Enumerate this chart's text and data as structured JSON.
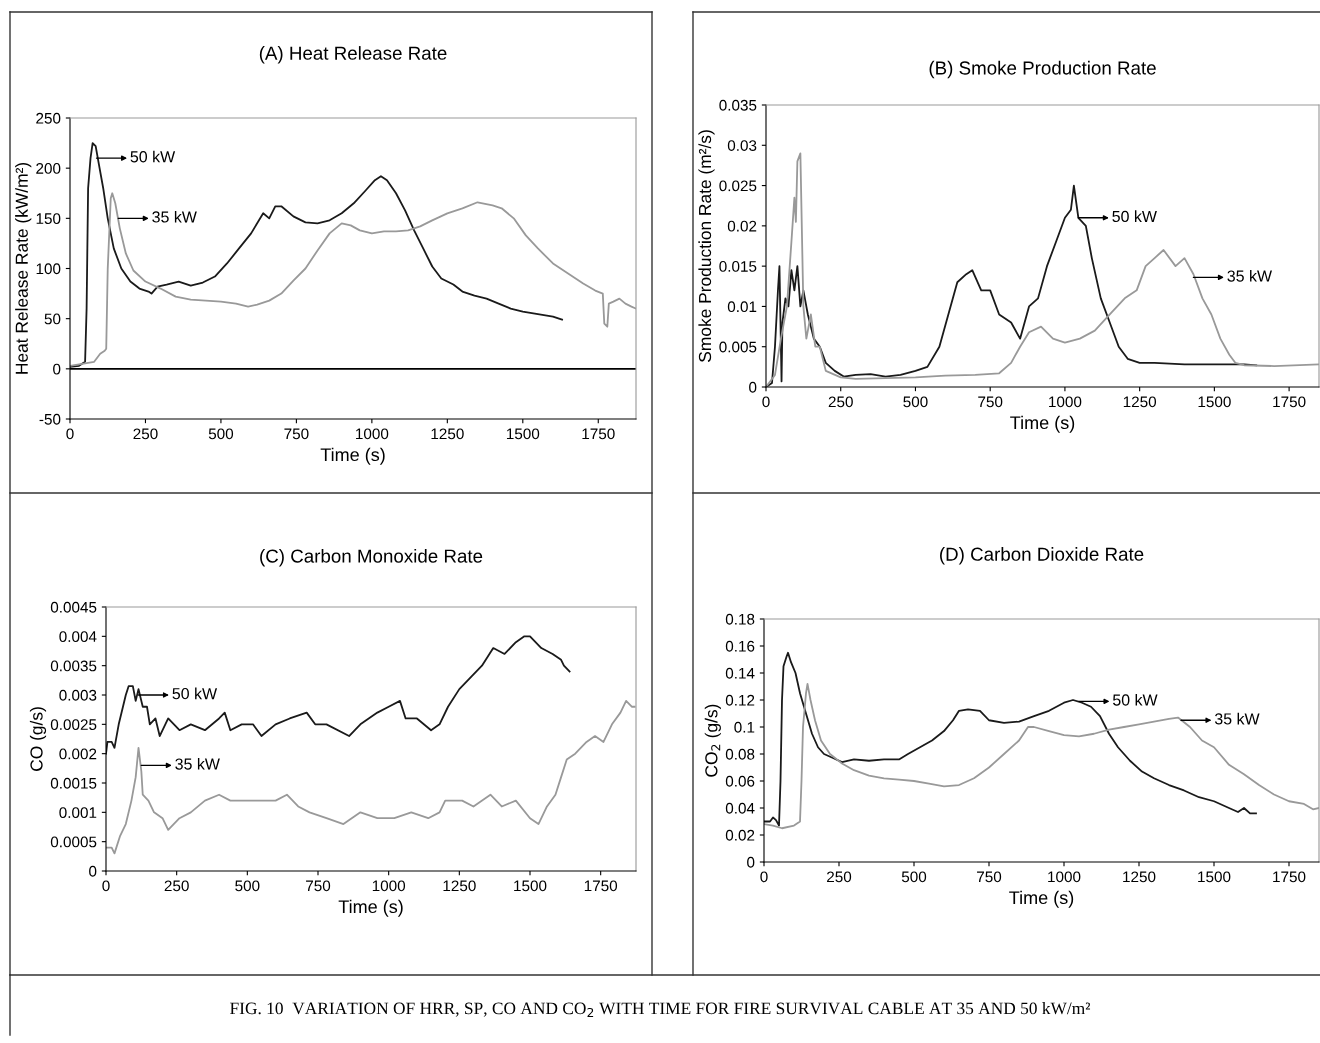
{
  "chart_data": [
    {
      "type": "line",
      "title": "(A) Heat Release Rate",
      "xlabel": "Time (s)",
      "ylabel": "Heat Release Rate (kW/m²)",
      "xlim": [
        0,
        1875
      ],
      "xticks": [
        0,
        250,
        500,
        750,
        1000,
        1250,
        1500,
        1750
      ],
      "ylim": [
        -50,
        250
      ],
      "yticks": [
        -50,
        0,
        50,
        100,
        150,
        200,
        250
      ],
      "series": [
        {
          "color": "#1a1a1a",
          "x": [
            0,
            30,
            45,
            50,
            55,
            60,
            68,
            75,
            85,
            95,
            110,
            125,
            145,
            170,
            200,
            230,
            260,
            270,
            290,
            320,
            360,
            400,
            440,
            480,
            520,
            560,
            600,
            640,
            660,
            680,
            700,
            740,
            780,
            820,
            860,
            900,
            940,
            980,
            1010,
            1030,
            1050,
            1080,
            1110,
            1140,
            1170,
            1200,
            1230,
            1270,
            1300,
            1340,
            1380,
            1420,
            1460,
            1500,
            1540,
            1580,
            1600,
            1620,
            1630
          ],
          "values": [
            2,
            3,
            6,
            7,
            60,
            180,
            210,
            225,
            222,
            205,
            180,
            150,
            120,
            100,
            87,
            80,
            77,
            75,
            82,
            84,
            87,
            83,
            86,
            92,
            105,
            120,
            135,
            155,
            150,
            162,
            162,
            152,
            146,
            145,
            148,
            155,
            165,
            178,
            188,
            192,
            188,
            175,
            158,
            138,
            120,
            102,
            90,
            84,
            77,
            73,
            70,
            65,
            60,
            57,
            55,
            53,
            52,
            50,
            49
          ]
        },
        {
          "color": "#999999",
          "x": [
            0,
            40,
            80,
            100,
            115,
            120,
            125,
            135,
            140,
            150,
            165,
            185,
            210,
            250,
            300,
            350,
            400,
            450,
            500,
            550,
            590,
            620,
            660,
            700,
            740,
            780,
            820,
            860,
            900,
            930,
            960,
            1000,
            1040,
            1080,
            1120,
            1160,
            1200,
            1250,
            1300,
            1350,
            1400,
            1430,
            1470,
            1510,
            1550,
            1600,
            1650,
            1700,
            1740,
            1765,
            1770,
            1780,
            1785,
            1800,
            1820,
            1840,
            1860,
            1875
          ],
          "values": [
            3,
            5,
            7,
            15,
            18,
            20,
            100,
            170,
            175,
            165,
            140,
            115,
            98,
            87,
            80,
            72,
            69,
            68,
            67,
            65,
            62,
            64,
            68,
            75,
            88,
            100,
            118,
            135,
            145,
            143,
            138,
            135,
            137,
            137,
            138,
            142,
            148,
            155,
            160,
            166,
            163,
            160,
            150,
            133,
            120,
            105,
            95,
            85,
            78,
            75,
            45,
            42,
            65,
            67,
            70,
            65,
            62,
            60
          ]
        }
      ],
      "annotations": [
        {
          "text": "50 kW",
          "x": 88,
          "y": 210
        },
        {
          "text": "35 kW",
          "x": 160,
          "y": 150
        }
      ]
    },
    {
      "type": "line",
      "title": "(B) Smoke Production Rate",
      "xlabel": "Time (s)",
      "ylabel": "Smoke Production Rate (m²/s)",
      "xlim": [
        0,
        1850
      ],
      "xticks": [
        0,
        250,
        500,
        750,
        1000,
        1250,
        1500,
        1750
      ],
      "ylim": [
        0,
        0.035
      ],
      "yticks": [
        0,
        0.005,
        0.01,
        0.015,
        0.02,
        0.025,
        0.03,
        0.035
      ],
      "series": [
        {
          "color": "#1a1a1a",
          "x": [
            0,
            20,
            30,
            40,
            45,
            50,
            52,
            55,
            65,
            75,
            85,
            95,
            105,
            115,
            125,
            140,
            160,
            180,
            200,
            230,
            260,
            300,
            350,
            400,
            450,
            500,
            540,
            580,
            610,
            640,
            670,
            690,
            720,
            750,
            780,
            820,
            850,
            880,
            910,
            940,
            970,
            1000,
            1020,
            1030,
            1045,
            1070,
            1090,
            1120,
            1150,
            1180,
            1210,
            1250,
            1300,
            1400,
            1500,
            1600,
            1640
          ],
          "values": [
            0,
            0.0005,
            0.005,
            0.012,
            0.015,
            0.005,
            0.0007,
            0.008,
            0.011,
            0.01,
            0.0145,
            0.012,
            0.015,
            0.01,
            0.012,
            0.009,
            0.006,
            0.005,
            0.003,
            0.002,
            0.0013,
            0.0015,
            0.0016,
            0.0013,
            0.0015,
            0.002,
            0.0025,
            0.005,
            0.009,
            0.013,
            0.014,
            0.0145,
            0.012,
            0.012,
            0.009,
            0.008,
            0.006,
            0.01,
            0.011,
            0.015,
            0.018,
            0.021,
            0.022,
            0.025,
            0.021,
            0.02,
            0.016,
            0.011,
            0.008,
            0.005,
            0.0035,
            0.003,
            0.003,
            0.0028,
            0.0028,
            0.0028,
            0.0027
          ]
        },
        {
          "color": "#999999",
          "x": [
            0,
            30,
            50,
            70,
            85,
            95,
            100,
            105,
            115,
            125,
            135,
            150,
            165,
            180,
            200,
            250,
            300,
            400,
            500,
            600,
            700,
            780,
            820,
            850,
            880,
            920,
            960,
            1000,
            1050,
            1100,
            1150,
            1200,
            1240,
            1270,
            1300,
            1330,
            1370,
            1400,
            1430,
            1460,
            1490,
            1520,
            1550,
            1570,
            1600,
            1700,
            1850
          ],
          "values": [
            0,
            0.0015,
            0.006,
            0.01,
            0.018,
            0.0235,
            0.0205,
            0.028,
            0.029,
            0.01,
            0.006,
            0.009,
            0.005,
            0.005,
            0.002,
            0.0012,
            0.001,
            0.0011,
            0.0012,
            0.0014,
            0.0015,
            0.0017,
            0.003,
            0.005,
            0.0068,
            0.0075,
            0.006,
            0.0055,
            0.006,
            0.007,
            0.009,
            0.011,
            0.012,
            0.015,
            0.016,
            0.017,
            0.015,
            0.016,
            0.014,
            0.011,
            0.009,
            0.006,
            0.004,
            0.003,
            0.0027,
            0.0026,
            0.0028
          ]
        }
      ],
      "annotations": [
        {
          "text": "50 kW",
          "x": 1045,
          "y": 0.021
        },
        {
          "text": "35 kW",
          "x": 1430,
          "y": 0.0136
        }
      ]
    },
    {
      "type": "line",
      "title": "(C) Carbon Monoxide Rate",
      "xlabel": "Time (s)",
      "ylabel": "CO (g/s)",
      "xlim": [
        0,
        1875
      ],
      "xticks": [
        0,
        250,
        500,
        750,
        1000,
        1250,
        1500,
        1750
      ],
      "ylim": [
        0,
        0.0045
      ],
      "yticks": [
        0,
        0.0005,
        0.001,
        0.0015,
        0.002,
        0.0025,
        0.003,
        0.0035,
        0.004,
        0.0045
      ],
      "series": [
        {
          "color": "#1a1a1a",
          "x": [
            0,
            5,
            20,
            30,
            45,
            60,
            70,
            80,
            95,
            105,
            115,
            130,
            145,
            155,
            175,
            190,
            220,
            260,
            300,
            350,
            400,
            420,
            440,
            480,
            520,
            550,
            600,
            650,
            710,
            740,
            780,
            860,
            900,
            960,
            1000,
            1040,
            1060,
            1100,
            1150,
            1180,
            1210,
            1250,
            1290,
            1330,
            1370,
            1410,
            1450,
            1480,
            1500,
            1540,
            1580,
            1610,
            1620,
            1640
          ],
          "values": [
            0.002,
            0.0022,
            0.0022,
            0.0021,
            0.0025,
            0.0028,
            0.003,
            0.00315,
            0.00315,
            0.0029,
            0.0031,
            0.0028,
            0.0028,
            0.0025,
            0.0026,
            0.0023,
            0.0026,
            0.0024,
            0.0025,
            0.0024,
            0.0026,
            0.0027,
            0.0024,
            0.0025,
            0.0025,
            0.0023,
            0.0025,
            0.0026,
            0.0027,
            0.0025,
            0.0025,
            0.0023,
            0.0025,
            0.0027,
            0.0028,
            0.0029,
            0.0026,
            0.0026,
            0.0024,
            0.0025,
            0.0028,
            0.0031,
            0.0033,
            0.0035,
            0.0038,
            0.0037,
            0.0039,
            0.004,
            0.004,
            0.0038,
            0.0037,
            0.0036,
            0.0035,
            0.0034
          ]
        },
        {
          "color": "#999999",
          "x": [
            0,
            20,
            30,
            50,
            70,
            90,
            105,
            115,
            125,
            130,
            150,
            170,
            200,
            220,
            260,
            300,
            350,
            400,
            440,
            500,
            550,
            600,
            640,
            680,
            720,
            780,
            840,
            900,
            960,
            1020,
            1080,
            1140,
            1180,
            1200,
            1260,
            1300,
            1360,
            1400,
            1450,
            1500,
            1530,
            1560,
            1590,
            1610,
            1630,
            1660,
            1700,
            1730,
            1760,
            1790,
            1820,
            1840,
            1860,
            1870
          ],
          "values": [
            0.0004,
            0.0004,
            0.0003,
            0.0006,
            0.0008,
            0.0012,
            0.0016,
            0.0021,
            0.0017,
            0.0013,
            0.0012,
            0.001,
            0.0009,
            0.0007,
            0.0009,
            0.001,
            0.0012,
            0.0013,
            0.0012,
            0.0012,
            0.0012,
            0.0012,
            0.0013,
            0.0011,
            0.001,
            0.0009,
            0.0008,
            0.001,
            0.0009,
            0.0009,
            0.001,
            0.0009,
            0.001,
            0.0012,
            0.0012,
            0.0011,
            0.0013,
            0.0011,
            0.0012,
            0.0009,
            0.0008,
            0.0011,
            0.0013,
            0.0016,
            0.0019,
            0.002,
            0.0022,
            0.0023,
            0.0022,
            0.0025,
            0.0027,
            0.0029,
            0.0028,
            0.0028
          ]
        }
      ],
      "annotations": [
        {
          "text": "50 kW",
          "x": 115,
          "y": 0.003
        },
        {
          "text": "35 kW",
          "x": 125,
          "y": 0.0018
        }
      ]
    },
    {
      "type": "line",
      "title": "(D) Carbon Dioxide Rate",
      "xlabel": "Time (s)",
      "ylabel": "CO$_{2}$ (g/s)",
      "xlim": [
        0,
        1850
      ],
      "xticks": [
        0,
        250,
        500,
        750,
        1000,
        1250,
        1500,
        1750
      ],
      "ylim": [
        0,
        0.18
      ],
      "yticks": [
        0,
        0.02,
        0.04,
        0.06,
        0.08,
        0.1,
        0.12,
        0.14,
        0.16,
        0.18
      ],
      "series": [
        {
          "color": "#1a1a1a",
          "x": [
            0,
            20,
            30,
            40,
            50,
            55,
            60,
            65,
            75,
            80,
            90,
            105,
            120,
            140,
            160,
            180,
            200,
            230,
            260,
            300,
            350,
            400,
            450,
            480,
            520,
            560,
            600,
            630,
            650,
            680,
            720,
            750,
            800,
            850,
            900,
            950,
            1000,
            1030,
            1060,
            1090,
            1120,
            1150,
            1180,
            1220,
            1260,
            1300,
            1350,
            1400,
            1450,
            1500,
            1550,
            1580,
            1600,
            1620,
            1640
          ],
          "values": [
            0.03,
            0.03,
            0.033,
            0.031,
            0.027,
            0.06,
            0.12,
            0.145,
            0.152,
            0.155,
            0.148,
            0.14,
            0.125,
            0.11,
            0.095,
            0.085,
            0.08,
            0.077,
            0.074,
            0.076,
            0.075,
            0.076,
            0.076,
            0.08,
            0.085,
            0.09,
            0.097,
            0.105,
            0.112,
            0.113,
            0.112,
            0.105,
            0.103,
            0.104,
            0.108,
            0.112,
            0.118,
            0.12,
            0.118,
            0.115,
            0.108,
            0.095,
            0.085,
            0.075,
            0.067,
            0.062,
            0.057,
            0.053,
            0.048,
            0.045,
            0.04,
            0.037,
            0.04,
            0.036,
            0.036
          ]
        },
        {
          "color": "#999999",
          "x": [
            0,
            30,
            60,
            100,
            120,
            125,
            130,
            140,
            145,
            155,
            170,
            190,
            220,
            260,
            300,
            350,
            400,
            450,
            500,
            550,
            600,
            650,
            700,
            750,
            800,
            850,
            880,
            900,
            950,
            1000,
            1050,
            1100,
            1150,
            1200,
            1250,
            1300,
            1350,
            1380,
            1420,
            1460,
            1500,
            1550,
            1600,
            1650,
            1700,
            1750,
            1800,
            1830,
            1850
          ],
          "values": [
            0.028,
            0.027,
            0.025,
            0.027,
            0.03,
            0.06,
            0.1,
            0.125,
            0.132,
            0.12,
            0.105,
            0.09,
            0.08,
            0.073,
            0.068,
            0.064,
            0.062,
            0.061,
            0.06,
            0.058,
            0.056,
            0.057,
            0.062,
            0.07,
            0.08,
            0.09,
            0.1,
            0.1,
            0.097,
            0.094,
            0.093,
            0.095,
            0.098,
            0.1,
            0.102,
            0.104,
            0.106,
            0.107,
            0.1,
            0.09,
            0.085,
            0.072,
            0.065,
            0.057,
            0.05,
            0.045,
            0.043,
            0.039,
            0.04
          ]
        }
      ],
      "annotations": [
        {
          "text": "50 kW",
          "x": 1050,
          "y": 0.119
        },
        {
          "text": "35 kW",
          "x": 1390,
          "y": 0.105
        },
        "FIG. 10  VARIATION OF HRR, SP, CO AND CO$_{2}$ WITH TIME FOR FIRE SURVIVAL CABLE AT 35 AND 50 kW/m²"
      ]
    }
  ]
}
